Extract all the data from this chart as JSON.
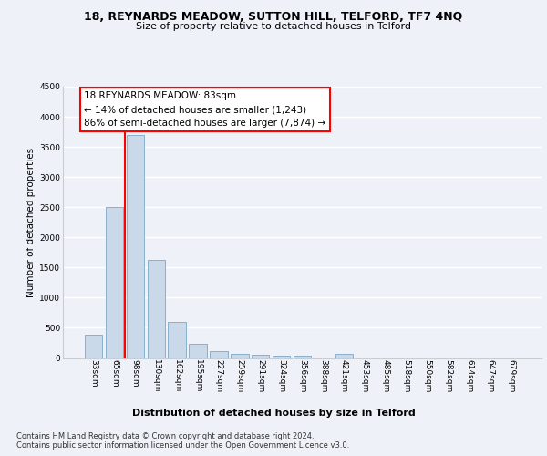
{
  "title1": "18, REYNARDS MEADOW, SUTTON HILL, TELFORD, TF7 4NQ",
  "title2": "Size of property relative to detached houses in Telford",
  "xlabel": "Distribution of detached houses by size in Telford",
  "ylabel": "Number of detached properties",
  "categories": [
    "33sqm",
    "65sqm",
    "98sqm",
    "130sqm",
    "162sqm",
    "195sqm",
    "227sqm",
    "259sqm",
    "291sqm",
    "324sqm",
    "356sqm",
    "388sqm",
    "421sqm",
    "453sqm",
    "485sqm",
    "518sqm",
    "550sqm",
    "582sqm",
    "614sqm",
    "647sqm",
    "679sqm"
  ],
  "values": [
    380,
    2500,
    3700,
    1620,
    600,
    230,
    110,
    70,
    50,
    40,
    38,
    0,
    65,
    0,
    0,
    0,
    0,
    0,
    0,
    0,
    0
  ],
  "bar_color": "#c9d9ea",
  "bar_edge_color": "#8ab0cc",
  "vline_color": "red",
  "vline_x": 1.5,
  "annotation_text": "18 REYNARDS MEADOW: 83sqm\n← 14% of detached houses are smaller (1,243)\n86% of semi-detached houses are larger (7,874) →",
  "annotation_box_color": "white",
  "annotation_border_color": "red",
  "ylim": [
    0,
    4500
  ],
  "yticks": [
    0,
    500,
    1000,
    1500,
    2000,
    2500,
    3000,
    3500,
    4000,
    4500
  ],
  "footnote": "Contains HM Land Registry data © Crown copyright and database right 2024.\nContains public sector information licensed under the Open Government Licence v3.0.",
  "title1_fontsize": 9,
  "title2_fontsize": 8,
  "xlabel_fontsize": 8,
  "ylabel_fontsize": 7.5,
  "tick_fontsize": 6.5,
  "annot_fontsize": 7.5,
  "footnote_fontsize": 6,
  "bg_color": "#eef2f8",
  "plot_bg_color": "#eef2f8",
  "grid_color": "#ffffff"
}
